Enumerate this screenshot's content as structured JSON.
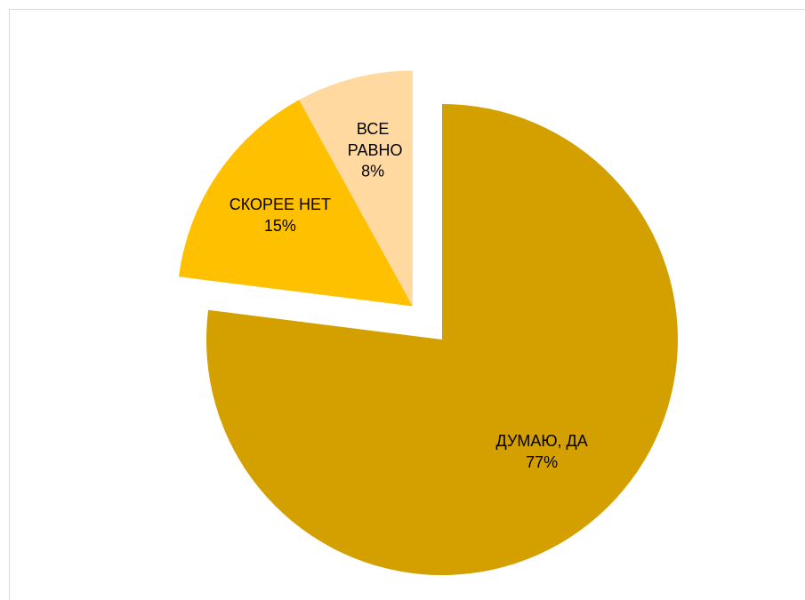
{
  "chart_data": {
    "type": "pie",
    "categories": [
      "ДУМАЮ, ДА",
      "СКОРЕЕ НЕТ",
      "ВСЕ РАВНО"
    ],
    "values": [
      77,
      15,
      8
    ],
    "value_labels": [
      "77%",
      "15%",
      "8%"
    ],
    "colors": [
      "#d4a000",
      "#ffc000",
      "#ffd9a0"
    ]
  }
}
